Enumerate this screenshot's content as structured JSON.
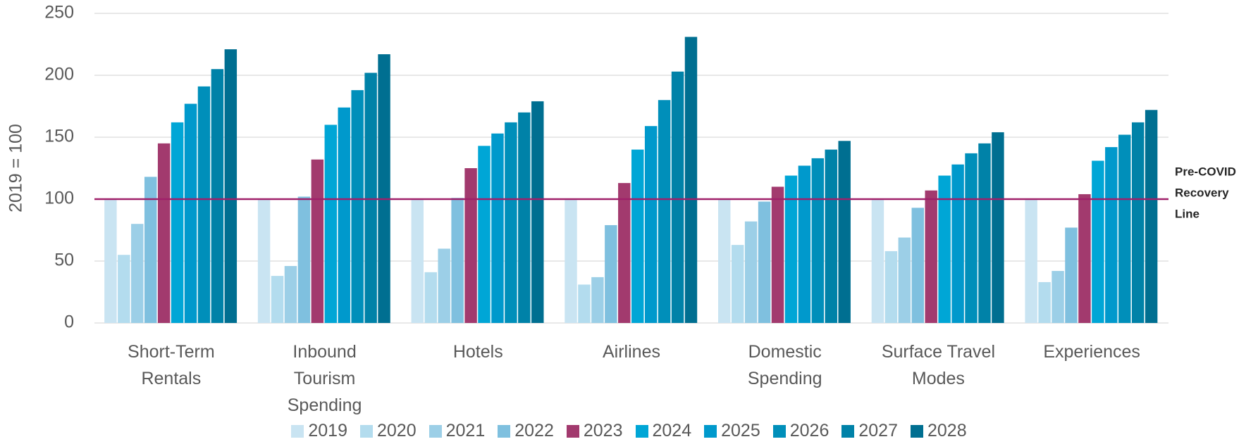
{
  "chart_data": {
    "type": "bar",
    "y_label": "2019 = 100",
    "categories": [
      "Short-Term Rentals",
      "Inbound Tourism Spending",
      "Hotels",
      "Airlines",
      "Domestic Spending",
      "Surface Travel Modes",
      "Experiences"
    ],
    "series": [
      {
        "name": "2019",
        "color": "#c9e4f2",
        "values": [
          100,
          100,
          100,
          100,
          100,
          100,
          100
        ]
      },
      {
        "name": "2020",
        "color": "#b3dcee",
        "values": [
          55,
          38,
          41,
          31,
          63,
          58,
          33
        ]
      },
      {
        "name": "2021",
        "color": "#9ccfe7",
        "values": [
          80,
          46,
          60,
          37,
          82,
          69,
          42
        ]
      },
      {
        "name": "2022",
        "color": "#7fc0df",
        "values": [
          118,
          102,
          101,
          79,
          98,
          93,
          77
        ]
      },
      {
        "name": "2023",
        "color": "#a23a6e",
        "values": [
          145,
          132,
          125,
          113,
          110,
          107,
          104
        ]
      },
      {
        "name": "2024",
        "color": "#00a6d6",
        "values": [
          162,
          160,
          143,
          140,
          119,
          119,
          131
        ]
      },
      {
        "name": "2025",
        "color": "#0099cc",
        "values": [
          177,
          174,
          153,
          159,
          127,
          128,
          142
        ]
      },
      {
        "name": "2026",
        "color": "#008fba",
        "values": [
          191,
          188,
          162,
          180,
          133,
          137,
          152
        ]
      },
      {
        "name": "2027",
        "color": "#0082a8",
        "values": [
          205,
          202,
          170,
          203,
          140,
          145,
          162
        ]
      },
      {
        "name": "2028",
        "color": "#006f91",
        "values": [
          221,
          217,
          179,
          231,
          147,
          154,
          172
        ]
      }
    ],
    "ylim": [
      0,
      250
    ],
    "yticks": [
      0,
      50,
      100,
      150,
      200,
      250
    ],
    "grid": true,
    "reference_line": {
      "value": 100,
      "color": "#a0206a",
      "label": [
        "Pre-COVID",
        "Recovery",
        "Line"
      ]
    },
    "legend": "bottom"
  }
}
